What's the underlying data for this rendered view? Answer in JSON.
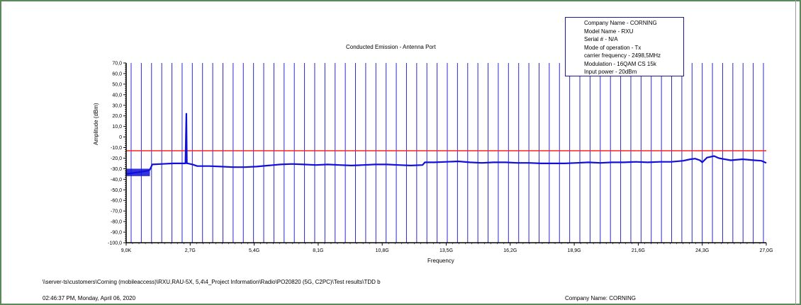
{
  "chart_data": {
    "type": "line",
    "title": "Conducted Emission - Antenna Port",
    "xlabel": "Frequency",
    "ylabel": "Amplitude (dBm)",
    "x_range_ghz": [
      9e-06,
      27.0
    ],
    "ylim": [
      -100,
      70
    ],
    "x_tick_labels": [
      "9,0K",
      "2,7G",
      "5,4G",
      "8,1G",
      "10,8G",
      "13,5G",
      "16,2G",
      "18,9G",
      "21,6G",
      "24,3G",
      "27,0G"
    ],
    "y_tick_labels": [
      "70,0",
      "60,0",
      "50,0",
      "40,0",
      "30,0",
      "20,0",
      "10,0",
      "0",
      "-10,0",
      "-20,0",
      "-30,0",
      "-40,0",
      "-50,0",
      "-60,0",
      "-70,0",
      "-80,0",
      "-90,0",
      "-100,0"
    ],
    "limit_line": {
      "value_dbm": -13,
      "color": "#ff2020"
    },
    "marker_line_count": 63,
    "marker_color": "#2a2ad0",
    "trace_color": "#1010d8",
    "series": [
      {
        "x": [
          0.0,
          0.3,
          0.6,
          0.9,
          1.0,
          1.1,
          1.5,
          2.0,
          2.4,
          2.5,
          2.54,
          2.56,
          2.6,
          2.8,
          3.0,
          3.5,
          4.0,
          4.5,
          5.0,
          5.5,
          6.0,
          6.5,
          7.0,
          7.5,
          8.0,
          8.5,
          9.0,
          9.5,
          10.0,
          10.5,
          11.0,
          11.5,
          12.0,
          12.5,
          12.6,
          13.0,
          13.5,
          14.0,
          14.5,
          15.0,
          15.5,
          16.0,
          16.5,
          17.0,
          17.5,
          18.0,
          18.5,
          19.0,
          19.5,
          20.0,
          20.5,
          21.0,
          21.5,
          22.0,
          22.5,
          23.0,
          23.5,
          23.8,
          24.0,
          24.2,
          24.3,
          24.5,
          24.8,
          25.0,
          25.5,
          26.0,
          26.5,
          26.8,
          27.0
        ],
        "y": [
          -35,
          -34,
          -33,
          -32,
          -31,
          -26,
          -25.5,
          -25,
          -25,
          -25,
          22,
          -25,
          -25,
          -26,
          -27.5,
          -27.5,
          -28,
          -28.5,
          -28.5,
          -28,
          -27,
          -26,
          -25.5,
          -26,
          -26.5,
          -26,
          -26.5,
          -27,
          -26.5,
          -26,
          -26,
          -26.5,
          -27,
          -26.5,
          -24,
          -24,
          -23.5,
          -23,
          -24,
          -24.5,
          -24,
          -24,
          -24.5,
          -24.5,
          -25,
          -25,
          -25,
          -24.5,
          -24,
          -24.5,
          -24,
          -24,
          -23.5,
          -24,
          -23.5,
          -23.5,
          -22.5,
          -21,
          -20.5,
          -22,
          -24,
          -19.5,
          -18,
          -20,
          -22,
          -21,
          -22,
          -22.5,
          -24.5
        ]
      }
    ]
  },
  "info_box": {
    "lines": [
      "Company Name - CORNING",
      "Model Name - RXU",
      "Serial # - N/A",
      "Mode of operation - Tx",
      "carrier frequency - 2498,5MHz",
      "Modulation - 16QAM CS 15k",
      "Input power - 20dBm"
    ]
  },
  "footer": {
    "path": "\\\\server-ts\\customers\\Corning (mobileaccess)\\RXU,RAU-5X, 5,4\\4_Project Information\\Radio\\PO20820 (5G, C2PC)\\Test results\\TDD b",
    "timestamp": "02:46:37 PM, Monday, April 06, 2020",
    "company": "Company Name: CORNING"
  }
}
